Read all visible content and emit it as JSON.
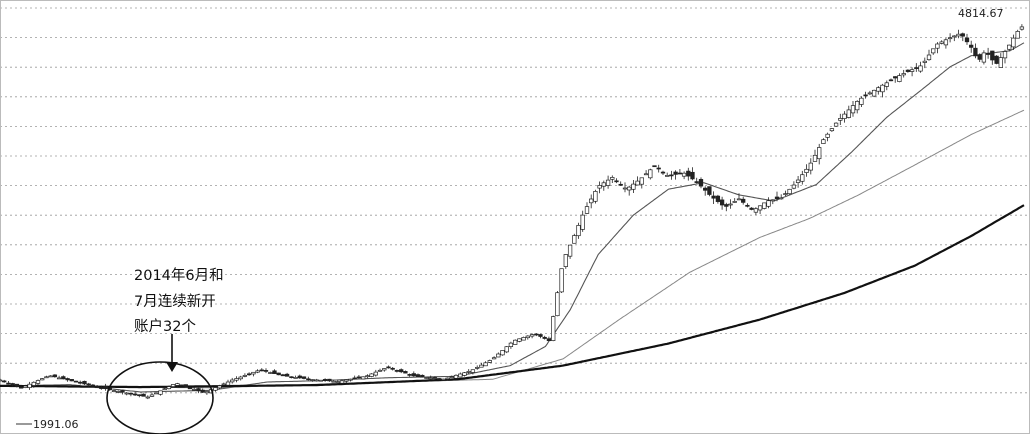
{
  "chart_data": {
    "type": "line",
    "title": "",
    "xlabel": "",
    "ylabel": "",
    "grid": true,
    "log_scale": true,
    "y_range": [
      250,
      5600
    ],
    "x_range_months": [
      0,
      291
    ],
    "start_label": "1991.06",
    "max_label": "4814.67",
    "series": [
      {
        "kind": "candles",
        "color": "#333333",
        "points": [
          [
            0,
            360
          ],
          [
            6,
            340
          ],
          [
            14,
            372
          ],
          [
            24,
            350
          ],
          [
            32,
            334
          ],
          [
            42,
            318
          ],
          [
            50,
            352
          ],
          [
            58,
            328
          ],
          [
            66,
            360
          ],
          [
            74,
            388
          ],
          [
            80,
            372
          ],
          [
            88,
            362
          ],
          [
            96,
            356
          ],
          [
            104,
            370
          ],
          [
            110,
            395
          ],
          [
            118,
            370
          ],
          [
            126,
            362
          ],
          [
            134,
            386
          ],
          [
            140,
            420
          ],
          [
            146,
            480
          ],
          [
            152,
            505
          ],
          [
            156,
            480
          ],
          [
            160,
            860
          ],
          [
            163,
            1020
          ],
          [
            166,
            1230
          ],
          [
            170,
            1480
          ],
          [
            174,
            1580
          ],
          [
            178,
            1450
          ],
          [
            182,
            1560
          ],
          [
            186,
            1720
          ],
          [
            190,
            1590
          ],
          [
            194,
            1640
          ],
          [
            198,
            1530
          ],
          [
            202,
            1380
          ],
          [
            206,
            1270
          ],
          [
            210,
            1350
          ],
          [
            214,
            1240
          ],
          [
            218,
            1330
          ],
          [
            222,
            1360
          ],
          [
            226,
            1510
          ],
          [
            230,
            1720
          ],
          [
            234,
            2080
          ],
          [
            238,
            2380
          ],
          [
            244,
            2780
          ],
          [
            250,
            3060
          ],
          [
            256,
            3340
          ],
          [
            262,
            3580
          ],
          [
            266,
            4160
          ],
          [
            270,
            4380
          ],
          [
            273,
            4520
          ],
          [
            276,
            4080
          ],
          [
            278,
            3680
          ],
          [
            280,
            3980
          ],
          [
            283,
            3600
          ],
          [
            285,
            3870
          ],
          [
            287,
            4180
          ],
          [
            289,
            4560
          ],
          [
            291,
            4814.67
          ]
        ]
      },
      {
        "kind": "ma_thin",
        "color": "#555555",
        "points": [
          [
            0,
            345
          ],
          [
            20,
            348
          ],
          [
            40,
            330
          ],
          [
            60,
            334
          ],
          [
            76,
            355
          ],
          [
            90,
            358
          ],
          [
            110,
            366
          ],
          [
            130,
            370
          ],
          [
            145,
            400
          ],
          [
            155,
            460
          ],
          [
            162,
            600
          ],
          [
            170,
            900
          ],
          [
            180,
            1200
          ],
          [
            190,
            1450
          ],
          [
            200,
            1520
          ],
          [
            210,
            1390
          ],
          [
            220,
            1330
          ],
          [
            232,
            1500
          ],
          [
            242,
            1900
          ],
          [
            252,
            2450
          ],
          [
            262,
            3000
          ],
          [
            270,
            3540
          ],
          [
            276,
            3840
          ],
          [
            282,
            3920
          ],
          [
            287,
            3980
          ],
          [
            291,
            4220
          ]
        ]
      },
      {
        "kind": "ma_mid",
        "color": "#888888",
        "points": [
          [
            0,
            345
          ],
          [
            60,
            340
          ],
          [
            100,
            352
          ],
          [
            140,
            362
          ],
          [
            160,
            420
          ],
          [
            176,
            560
          ],
          [
            196,
            790
          ],
          [
            216,
            1020
          ],
          [
            230,
            1170
          ],
          [
            244,
            1390
          ],
          [
            260,
            1730
          ],
          [
            276,
            2160
          ],
          [
            291,
            2580
          ]
        ]
      },
      {
        "kind": "ma_long",
        "color": "#111111",
        "points": [
          [
            0,
            345
          ],
          [
            40,
            342
          ],
          [
            90,
            347
          ],
          [
            130,
            362
          ],
          [
            160,
            400
          ],
          [
            190,
            470
          ],
          [
            216,
            560
          ],
          [
            240,
            680
          ],
          [
            260,
            830
          ],
          [
            276,
            1030
          ],
          [
            291,
            1290
          ]
        ]
      }
    ],
    "annotation": {
      "lines": [
        "2014年6月和",
        "7月连续新开",
        "账户32个"
      ],
      "circle_center_month": 74,
      "circle_center_value": 345
    }
  }
}
